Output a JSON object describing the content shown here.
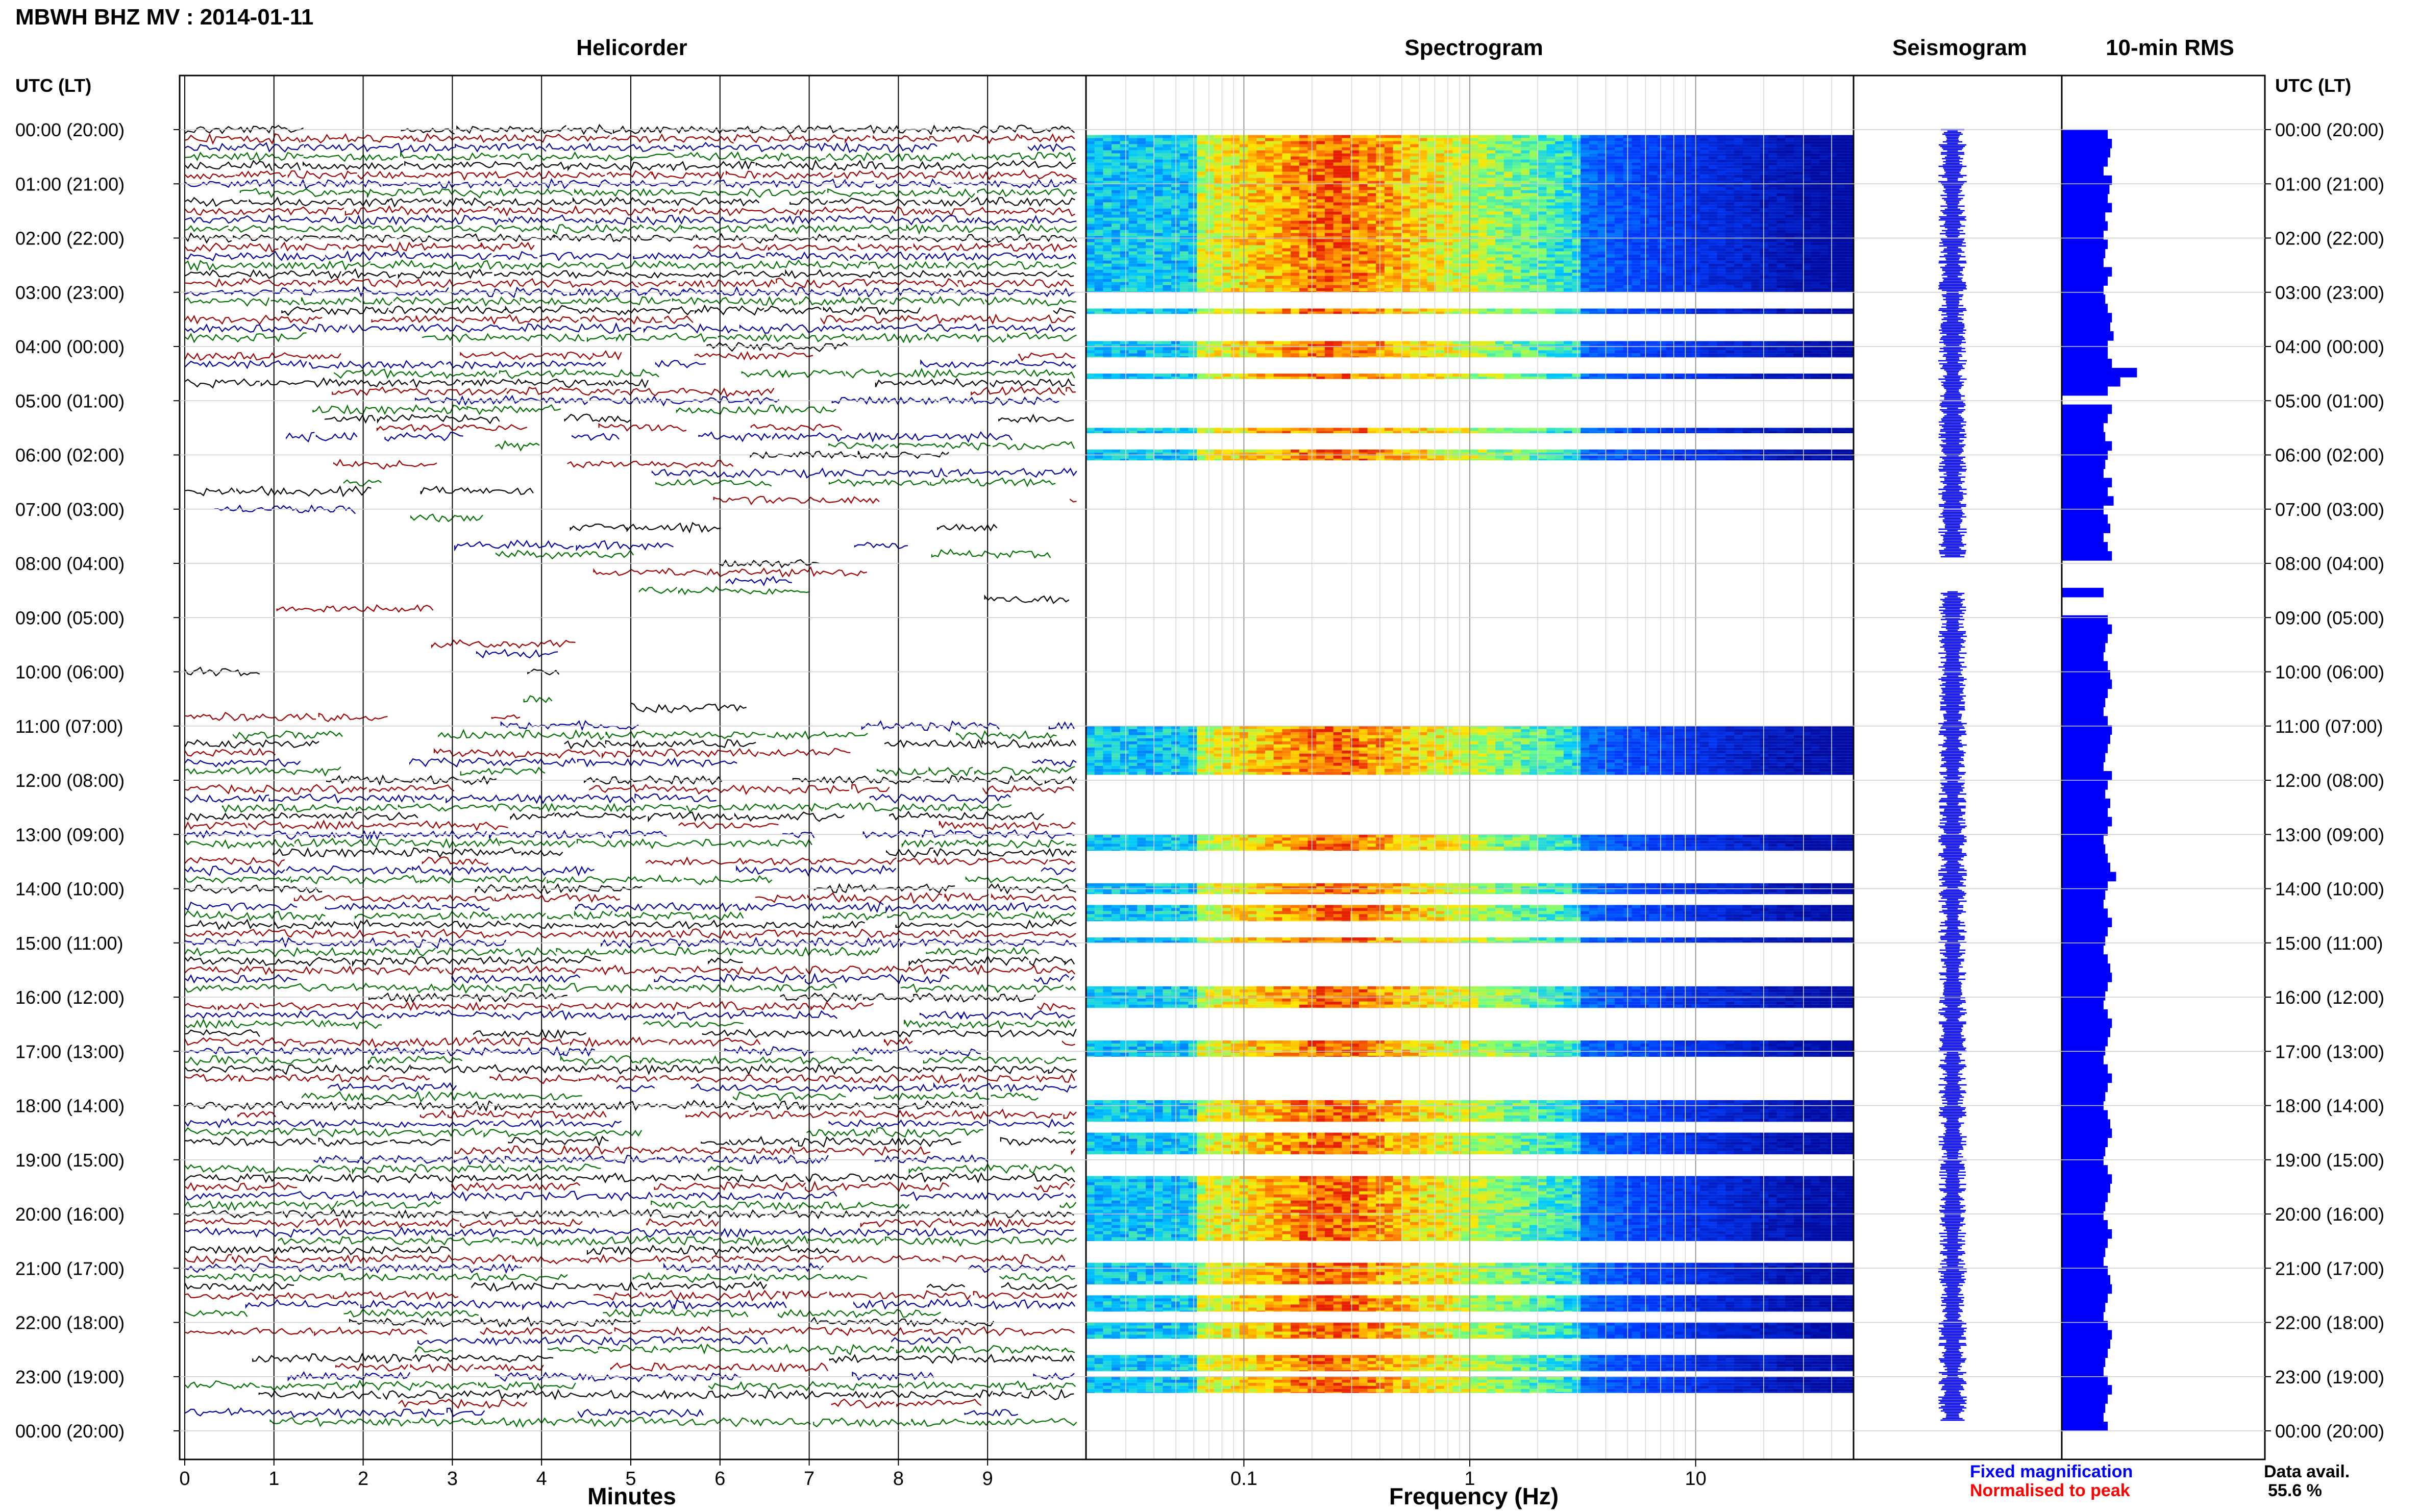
{
  "header": {
    "title": "MBWH BHZ MV : 2014-01-11",
    "panel_titles": [
      "Helicorder",
      "Spectrogram",
      "Seismogram",
      "10-min RMS"
    ],
    "left_axis_title": "UTC (LT)",
    "right_axis_title": "UTC (LT)",
    "legend_fixed": "Fixed magnification",
    "legend_normalised": "Normalised to peak",
    "data_avail_label": "Data avail.",
    "data_avail_value": "55.6 %"
  },
  "colors": {
    "fixed": "#0000ff",
    "normalised": "#ff0000",
    "trace_colors": [
      "#000000",
      "#a00000",
      "#0000a0",
      "#007000"
    ],
    "rms_fill": "#0000ff"
  },
  "chart_data": [
    {
      "type": "line",
      "title": "Helicorder",
      "xlabel": "Minutes",
      "x_ticks": [
        "0",
        "1",
        "2",
        "3",
        "4",
        "5",
        "6",
        "7",
        "8",
        "9"
      ],
      "xlim": [
        0,
        10
      ],
      "y_ticks_utc": [
        "00:00 (20:00)",
        "01:00 (21:00)",
        "02:00 (22:00)",
        "03:00 (23:00)",
        "04:00 (00:00)",
        "05:00 (01:00)",
        "06:00 (02:00)",
        "07:00 (03:00)",
        "08:00 (04:00)",
        "09:00 (05:00)",
        "10:00 (06:00)",
        "11:00 (07:00)",
        "12:00 (08:00)",
        "13:00 (09:00)",
        "14:00 (10:00)",
        "15:00 (11:00)",
        "16:00 (12:00)",
        "17:00 (13:00)",
        "18:00 (14:00)",
        "19:00 (15:00)",
        "20:00 (16:00)",
        "21:00 (17:00)",
        "22:00 (18:00)",
        "23:00 (19:00)",
        "00:00 (20:00)"
      ],
      "ylim_hours": [
        0,
        24
      ],
      "rows_per_hour": 6,
      "coverage_by_hour": [
        0.95,
        0.95,
        0.95,
        0.9,
        0.6,
        0.45,
        0.35,
        0.15,
        0.12,
        0.08,
        0.12,
        0.45,
        0.8,
        0.8,
        0.75,
        0.8,
        0.7,
        0.8,
        0.75,
        0.8,
        0.85,
        0.7,
        0.6,
        0.75
      ]
    },
    {
      "type": "heatmap",
      "title": "Spectrogram",
      "xlabel": "Frequency (Hz)",
      "x_scale": "log",
      "x_ticks": [
        "0.1",
        "1",
        "10"
      ],
      "xlim": [
        0.02,
        50
      ],
      "peak_frequency_hz": 0.25,
      "ylim_hours": [
        0,
        24
      ],
      "data_present_bands_hours": [
        [
          0.1,
          3.0
        ],
        [
          3.3,
          3.4
        ],
        [
          3.9,
          4.2
        ],
        [
          4.5,
          4.6
        ],
        [
          5.5,
          5.6
        ],
        [
          5.9,
          6.1
        ],
        [
          11.0,
          11.9
        ],
        [
          13.0,
          13.3
        ],
        [
          13.9,
          14.1
        ],
        [
          14.3,
          14.6
        ],
        [
          14.9,
          15.0
        ],
        [
          15.8,
          16.2
        ],
        [
          16.8,
          17.1
        ],
        [
          17.9,
          18.3
        ],
        [
          18.5,
          18.9
        ],
        [
          19.3,
          20.5
        ],
        [
          20.9,
          21.3
        ],
        [
          21.5,
          21.8
        ],
        [
          22.0,
          22.3
        ],
        [
          22.6,
          22.9
        ],
        [
          23.0,
          23.3
        ]
      ]
    },
    {
      "type": "line",
      "title": "Seismogram",
      "ylim_hours": [
        0,
        24
      ],
      "gaps_hours": [
        [
          7.9,
          8.5
        ]
      ]
    },
    {
      "type": "bar",
      "title": "10-min RMS",
      "orientation": "horizontal",
      "ylim_hours": [
        0,
        24
      ],
      "gaps_hours": [
        [
          4.83,
          5.0
        ],
        [
          7.9,
          8.4
        ],
        [
          8.6,
          8.85
        ]
      ],
      "relative_values": [
        0.55,
        0.6,
        0.58,
        0.55,
        0.5,
        0.6,
        0.57,
        0.55,
        0.6,
        0.52,
        0.55,
        0.5,
        0.55,
        0.52,
        0.5,
        0.6,
        0.55,
        0.5,
        0.52,
        0.55,
        0.6,
        0.58,
        0.62,
        0.55,
        0.55,
        0.6,
        0.9,
        0.7,
        0.55,
        0.58,
        0.6,
        0.55,
        0.5,
        0.52,
        0.6,
        0.55,
        0.52,
        0.5,
        0.6,
        0.55,
        0.62,
        0.5,
        0.55,
        0.58,
        0.5,
        0.55,
        0.6,
        0.65,
        0.6,
        0.55,
        0.5,
        0.58,
        0.52,
        0.55,
        0.6,
        0.55,
        0.52,
        0.5,
        0.55,
        0.58,
        0.6,
        0.55,
        0.52,
        0.5,
        0.55,
        0.6,
        0.58,
        0.55,
        0.52,
        0.5,
        0.6,
        0.55,
        0.52,
        0.58,
        0.55,
        0.6,
        0.55,
        0.5,
        0.52,
        0.55,
        0.58,
        0.65,
        0.55,
        0.52,
        0.5,
        0.55,
        0.6,
        0.55,
        0.52,
        0.5,
        0.55,
        0.58,
        0.6,
        0.55,
        0.52,
        0.5,
        0.55,
        0.6,
        0.58,
        0.55,
        0.52,
        0.5,
        0.55,
        0.6,
        0.55,
        0.52,
        0.5,
        0.55,
        0.58,
        0.6,
        0.55,
        0.52,
        0.5,
        0.55,
        0.6,
        0.58,
        0.55,
        0.52,
        0.5,
        0.55,
        0.6,
        0.55,
        0.52,
        0.5,
        0.55,
        0.58,
        0.6,
        0.55,
        0.52,
        0.5,
        0.55,
        0.6,
        0.58,
        0.55,
        0.52,
        0.5,
        0.55,
        0.6,
        0.55,
        0.52,
        0.5,
        0.55
      ]
    }
  ]
}
